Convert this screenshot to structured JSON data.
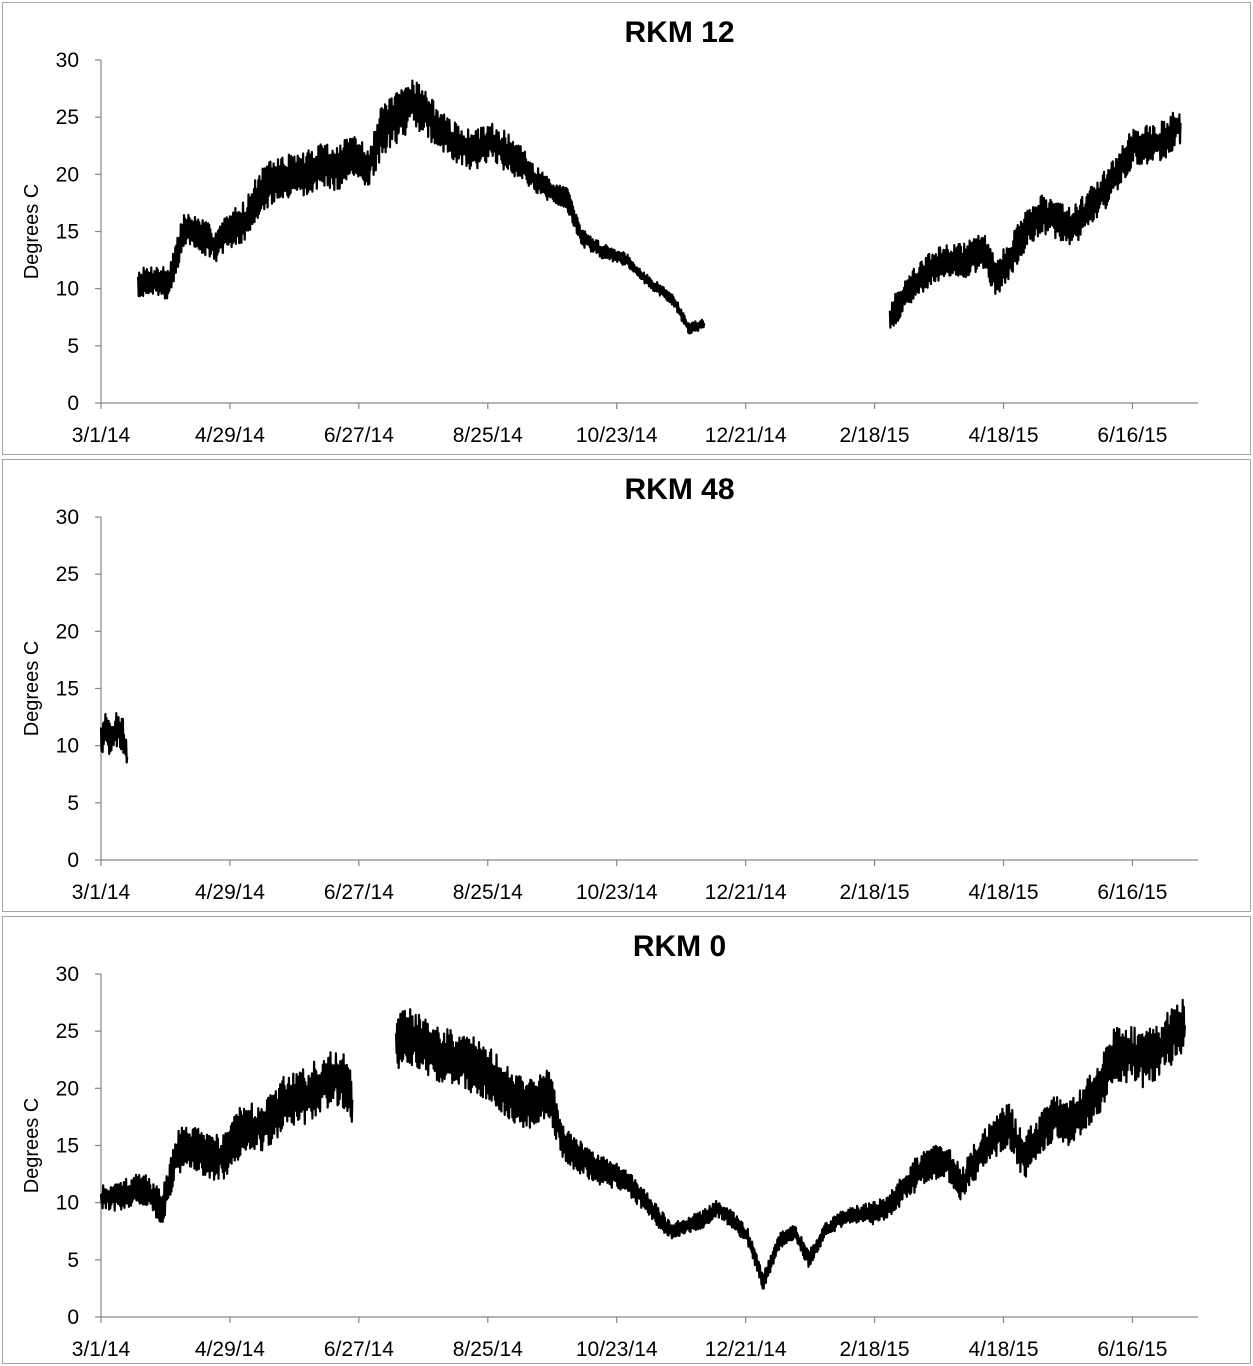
{
  "figure": {
    "line_color": "#000000",
    "border_color": "#a6a6a6",
    "background": "#ffffff"
  },
  "chart_data": [
    {
      "type": "line",
      "title": "RKM 12",
      "ylabel": "Degrees  C",
      "xlabel": "",
      "ylim": [
        0,
        30
      ],
      "yticks": [
        0,
        5,
        10,
        15,
        20,
        25,
        30
      ],
      "xlim": [
        "3/1/14",
        "7/16/15"
      ],
      "xticks": [
        "3/1/14",
        "4/29/14",
        "6/27/14",
        "8/25/14",
        "10/23/14",
        "12/21/14",
        "2/18/15",
        "4/18/15",
        "6/16/15"
      ],
      "grid": false,
      "legend": "none",
      "series": [
        {
          "segments": [
            {
              "dates": [
                "3/18/14",
                "3/25/14",
                "4/1/14",
                "4/8/14",
                "4/15/14",
                "4/22/14",
                "4/29/14",
                "5/6/14",
                "5/13/14",
                "5/20/14",
                "5/27/14",
                "6/3/14",
                "6/10/14",
                "6/17/14",
                "6/24/14",
                "7/1/14",
                "7/8/14",
                "7/15/14",
                "7/22/14",
                "7/29/14",
                "8/5/14",
                "8/12/14",
                "8/19/14",
                "8/26/14",
                "9/2/14",
                "9/9/14",
                "9/16/14",
                "9/23/14",
                "9/30/14",
                "10/7/14",
                "10/14/14",
                "10/21/14",
                "10/28/14",
                "11/4/14",
                "11/11/14",
                "11/18/14",
                "11/25/14",
                "12/2/14"
              ],
              "values": [
                10.5,
                10.8,
                10.5,
                15.2,
                14.8,
                13.8,
                15.0,
                16.0,
                18.5,
                19.5,
                19.8,
                20.0,
                21.0,
                20.5,
                21.5,
                20.5,
                24.0,
                25.0,
                26.5,
                25.0,
                23.5,
                22.5,
                22.0,
                23.0,
                22.0,
                21.0,
                19.5,
                18.5,
                18.0,
                14.5,
                13.5,
                13.0,
                12.5,
                11.0,
                10.0,
                9.0,
                6.5,
                7.0
              ],
              "band": [
                2.5,
                2.5,
                3.0,
                3.0,
                3.0,
                3.0,
                3.5,
                3.5,
                4.0,
                4.0,
                4.0,
                4.0,
                4.0,
                4.0,
                4.0,
                4.0,
                4.5,
                4.5,
                4.5,
                4.0,
                3.5,
                3.5,
                3.5,
                3.5,
                3.5,
                3.0,
                2.5,
                2.0,
                2.0,
                1.5,
                1.5,
                1.2,
                1.2,
                1.0,
                1.0,
                1.0,
                1.0,
                1.0
              ]
            },
            {
              "dates": [
                "2/25/15",
                "3/4/15",
                "3/11/15",
                "3/18/15",
                "3/25/15",
                "4/1/15",
                "4/8/15",
                "4/15/15",
                "4/22/15",
                "4/29/15",
                "5/6/15",
                "5/13/15",
                "5/20/15",
                "5/27/15",
                "6/3/15",
                "6/10/15",
                "6/17/15",
                "6/24/15",
                "7/1/15",
                "7/8/15"
              ],
              "values": [
                7.5,
                9.5,
                11.0,
                12.0,
                12.5,
                12.5,
                13.5,
                11.0,
                13.0,
                15.5,
                16.5,
                16.0,
                15.5,
                17.0,
                18.5,
                20.5,
                22.5,
                22.5,
                23.0,
                24.5
              ],
              "band": [
                2.5,
                3.0,
                3.0,
                3.0,
                3.0,
                3.0,
                3.5,
                3.5,
                3.5,
                3.5,
                3.5,
                3.5,
                3.5,
                3.5,
                3.5,
                3.5,
                3.5,
                3.5,
                3.5,
                3.5
              ]
            }
          ]
        }
      ]
    },
    {
      "type": "line",
      "title": "RKM 48",
      "ylabel": "Degrees  C",
      "xlabel": "",
      "ylim": [
        0,
        30
      ],
      "yticks": [
        0,
        5,
        10,
        15,
        20,
        25,
        30
      ],
      "xlim": [
        "3/1/14",
        "7/16/15"
      ],
      "xticks": [
        "3/1/14",
        "4/29/14",
        "6/27/14",
        "8/25/14",
        "10/23/14",
        "12/21/14",
        "2/18/15",
        "4/18/15",
        "6/16/15"
      ],
      "grid": false,
      "legend": "none",
      "series": [
        {
          "segments": [
            {
              "dates": [
                "3/1/14",
                "3/3/14",
                "3/5/14",
                "3/7/14",
                "3/9/14",
                "3/11/14",
                "3/13/14"
              ],
              "values": [
                10.5,
                11.5,
                10.5,
                11.0,
                11.5,
                11.0,
                9.0
              ],
              "band": [
                3.0,
                3.0,
                3.0,
                3.0,
                3.5,
                3.0,
                2.0
              ]
            }
          ]
        }
      ]
    },
    {
      "type": "line",
      "title": "RKM 0",
      "ylabel": "Degrees  C",
      "xlabel": "",
      "ylim": [
        0,
        30
      ],
      "yticks": [
        0,
        5,
        10,
        15,
        20,
        25,
        30
      ],
      "xlim": [
        "3/1/14",
        "7/16/15"
      ],
      "xticks": [
        "3/1/14",
        "4/29/14",
        "6/27/14",
        "8/25/14",
        "10/23/14",
        "12/21/14",
        "2/18/15",
        "4/18/15",
        "6/16/15"
      ],
      "grid": false,
      "legend": "none",
      "series": [
        {
          "segments": [
            {
              "dates": [
                "3/1/14",
                "3/8/14",
                "3/15/14",
                "3/22/14",
                "3/29/14",
                "4/5/14",
                "4/12/14",
                "4/19/14",
                "4/26/14",
                "5/3/14",
                "5/10/14",
                "5/17/14",
                "5/24/14",
                "5/31/14",
                "6/7/14",
                "6/14/14",
                "6/21/14",
                "6/24/14"
              ],
              "values": [
                10.5,
                10.5,
                11.0,
                11.0,
                9.5,
                14.5,
                15.0,
                14.0,
                14.0,
                16.0,
                16.5,
                17.0,
                19.0,
                19.0,
                20.0,
                21.0,
                20.5,
                19.0
              ],
              "band": [
                2.0,
                2.5,
                3.0,
                3.0,
                3.0,
                4.0,
                4.0,
                4.0,
                4.0,
                4.5,
                4.5,
                4.5,
                5.0,
                5.0,
                5.0,
                5.0,
                5.0,
                5.0
              ]
            },
            {
              "dates": [
                "7/14/14",
                "7/21/14",
                "7/28/14",
                "8/4/14",
                "8/11/14",
                "8/18/14",
                "8/25/14",
                "9/1/14",
                "9/8/14",
                "9/15/14",
                "9/22/14",
                "9/29/14",
                "10/6/14",
                "10/13/14",
                "10/20/14",
                "10/27/14",
                "11/3/14",
                "11/10/14",
                "11/17/14",
                "11/24/14",
                "12/1/14",
                "12/8/14",
                "12/15/14",
                "12/22/14",
                "12/29/14",
                "1/5/15",
                "1/12/15",
                "1/19/15",
                "1/26/15",
                "2/2/15",
                "2/9/15",
                "2/16/15",
                "2/23/15",
                "3/2/15",
                "3/9/15",
                "3/16/15",
                "3/23/15",
                "3/30/15",
                "4/6/15",
                "4/13/15",
                "4/20/15",
                "4/27/15",
                "5/4/15",
                "5/11/15",
                "5/18/15",
                "5/25/15",
                "6/1/15",
                "6/8/15",
                "6/15/15",
                "6/22/15",
                "6/29/15",
                "7/6/15",
                "7/10/15"
              ],
              "values": [
                24.0,
                24.5,
                23.5,
                23.0,
                22.5,
                22.0,
                21.5,
                20.0,
                19.0,
                18.5,
                19.5,
                15.0,
                14.0,
                13.0,
                12.5,
                12.0,
                10.5,
                9.0,
                7.5,
                8.0,
                8.5,
                9.5,
                8.5,
                7.0,
                3.0,
                6.5,
                7.5,
                5.0,
                7.5,
                8.5,
                9.0,
                9.0,
                9.5,
                11.0,
                12.5,
                13.5,
                13.5,
                11.5,
                14.0,
                15.5,
                17.0,
                14.0,
                15.5,
                17.5,
                17.0,
                18.5,
                20.0,
                23.0,
                23.0,
                22.5,
                23.5,
                25.0,
                25.5
              ],
              "band": [
                5.5,
                5.0,
                5.0,
                5.0,
                5.0,
                5.0,
                5.0,
                4.5,
                4.5,
                4.5,
                4.5,
                3.0,
                3.0,
                2.5,
                2.5,
                2.0,
                2.0,
                2.0,
                1.5,
                1.5,
                1.5,
                1.5,
                1.5,
                1.5,
                1.5,
                1.5,
                1.5,
                1.5,
                1.5,
                1.5,
                1.5,
                2.0,
                2.0,
                2.5,
                3.0,
                3.0,
                3.0,
                3.0,
                3.5,
                3.5,
                4.0,
                4.0,
                4.0,
                4.0,
                4.0,
                4.5,
                4.5,
                5.0,
                5.0,
                5.0,
                5.0,
                5.0,
                5.0
              ]
            }
          ]
        }
      ]
    }
  ]
}
